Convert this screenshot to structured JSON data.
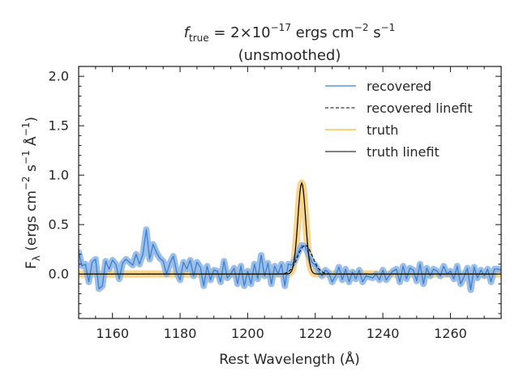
{
  "chart_data": {
    "type": "line",
    "title_line1_math": "f",
    "title_line1_sub": "true",
    "title_line1_eq": " = 2×10",
    "title_line1_exp": "−17",
    "title_line1_units": " ergs cm",
    "title_line1_units_exp": "−2",
    "title_line1_units_s": " s",
    "title_line1_units_s_exp": "−1",
    "title_line2": "(unsmoothed)",
    "xlabel": "Rest Wavelength (Å)",
    "ylabel": "F_λ (ergs cm^-2 s^-1 Å^-1)",
    "ylabel_parts": {
      "f": "F",
      "sub": "λ",
      "a": " (ergs cm",
      "e1": "−2",
      "b": " s",
      "e2": "−1",
      "c": " Å",
      "e3": "−1",
      "d": ")"
    },
    "xlim": [
      1150,
      1275
    ],
    "ylim": [
      -0.45,
      2.1
    ],
    "xticks": [
      1160,
      1180,
      1200,
      1220,
      1240,
      1260
    ],
    "xtick_labels": [
      "1160",
      "1180",
      "1200",
      "1220",
      "1240",
      "1260"
    ],
    "yticks": [
      0.0,
      0.5,
      1.0,
      1.5,
      2.0
    ],
    "ytick_labels": [
      "0.0",
      "0.5",
      "1.0",
      "1.5",
      "2.0"
    ],
    "legend": [
      "recovered",
      "recovered linefit",
      "truth",
      "truth linefit"
    ],
    "legend_position": "top-right",
    "colors": {
      "recovered": "#3b7fd1",
      "recovered_band": "#8ab4e4",
      "truth": "#f5b428",
      "truth_band": "#f7cf80",
      "linefit": "#000000"
    },
    "recovered": {
      "x": [
        1150,
        1151,
        1152,
        1153,
        1154,
        1155,
        1156,
        1157,
        1158,
        1159,
        1160,
        1161,
        1162,
        1163,
        1164,
        1165,
        1166,
        1167,
        1168,
        1169,
        1170,
        1171,
        1172,
        1173,
        1174,
        1175,
        1176,
        1177,
        1178,
        1179,
        1180,
        1181,
        1182,
        1183,
        1184,
        1185,
        1186,
        1187,
        1188,
        1189,
        1190,
        1191,
        1192,
        1193,
        1194,
        1195,
        1196,
        1197,
        1198,
        1199,
        1200,
        1201,
        1202,
        1203,
        1204,
        1205,
        1206,
        1207,
        1208,
        1209,
        1210,
        1211,
        1212,
        1213,
        1214,
        1215,
        1216,
        1217,
        1218,
        1219,
        1220,
        1221,
        1222,
        1223,
        1224,
        1225,
        1226,
        1227,
        1228,
        1229,
        1230,
        1231,
        1232,
        1233,
        1234,
        1235,
        1236,
        1237,
        1238,
        1239,
        1240,
        1241,
        1242,
        1243,
        1244,
        1245,
        1246,
        1247,
        1248,
        1249,
        1250,
        1251,
        1252,
        1253,
        1254,
        1255,
        1256,
        1257,
        1258,
        1259,
        1260,
        1261,
        1262,
        1263,
        1264,
        1265,
        1266,
        1267,
        1268,
        1269,
        1270,
        1271,
        1272,
        1273,
        1274,
        1275
      ],
      "y": [
        0.22,
        0.08,
        0.1,
        -0.08,
        0.12,
        0.15,
        -0.15,
        -0.12,
        0.13,
        0.05,
        0.14,
        0.1,
        -0.05,
        0.11,
        0.15,
        0.12,
        0.09,
        0.2,
        0.1,
        0.2,
        0.45,
        0.15,
        0.3,
        0.22,
        0.16,
        0.13,
        0.0,
        0.11,
        0.18,
        0.02,
        -0.06,
        0.12,
        0.05,
        0.14,
        -0.02,
        0.12,
        0.07,
        -0.12,
        0.08,
        -0.06,
        0.04,
        0.03,
        -0.08,
        0.13,
        -0.04,
        0.0,
        0.06,
        -0.1,
        0.08,
        -0.12,
        0.03,
        -0.1,
        0.1,
        -0.05,
        0.19,
        -0.02,
        0.11,
        -0.1,
        0.08,
        0.0,
        0.1,
        -0.12,
        0.1,
        0.09,
        0.14,
        0.22,
        0.29,
        0.28,
        0.2,
        0.12,
        0.09,
        0.03,
        -0.02,
        0.04,
        0.01,
        -0.08,
        -0.02,
        0.07,
        -0.06,
        0.05,
        -0.08,
        0.02,
        -0.05,
        0.04,
        -0.08,
        -0.02,
        -0.03,
        -0.04,
        0.0,
        -0.06,
        0.04,
        -0.06,
        -0.01,
        0.03,
        0.05,
        -0.08,
        0.08,
        -0.05,
        0.06,
        0.04,
        -0.07,
        0.1,
        -0.1,
        0.06,
        -0.02,
        0.05,
        0.03,
        -0.02,
        0.08,
        0.0,
        0.03,
        -0.05,
        0.08,
        -0.1,
        -0.03,
        0.06,
        -0.16,
        0.07,
        -0.04,
        0.04,
        -0.02,
        0.05,
        -0.08,
        0.05,
        0.05,
        0.04
      ]
    },
    "truth_line": {
      "continuum": 0.0,
      "peak": 0.92,
      "center": 1216.0,
      "sigma": 1.15
    },
    "recovered_line": {
      "continuum": 0.0,
      "peak": 0.29,
      "center": 1217.0,
      "sigma": 2.2
    }
  }
}
